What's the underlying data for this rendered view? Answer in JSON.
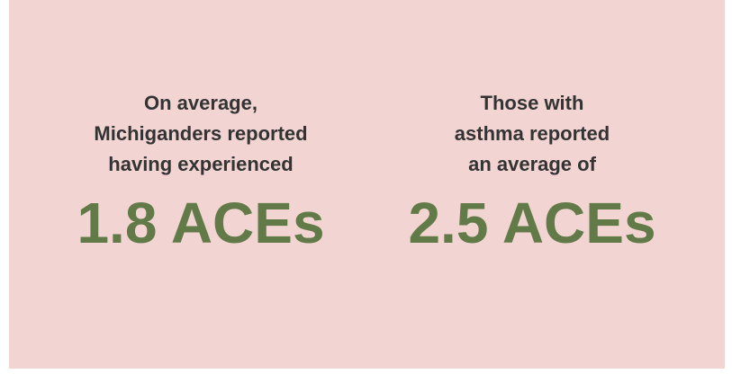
{
  "stats": [
    {
      "description": [
        "On average,",
        "Michiganders reported",
        "having experienced"
      ],
      "value": "1.8 ACEs"
    },
    {
      "description": [
        "Those with",
        "asthma reported",
        "an average of"
      ],
      "value": "2.5 ACEs"
    }
  ]
}
